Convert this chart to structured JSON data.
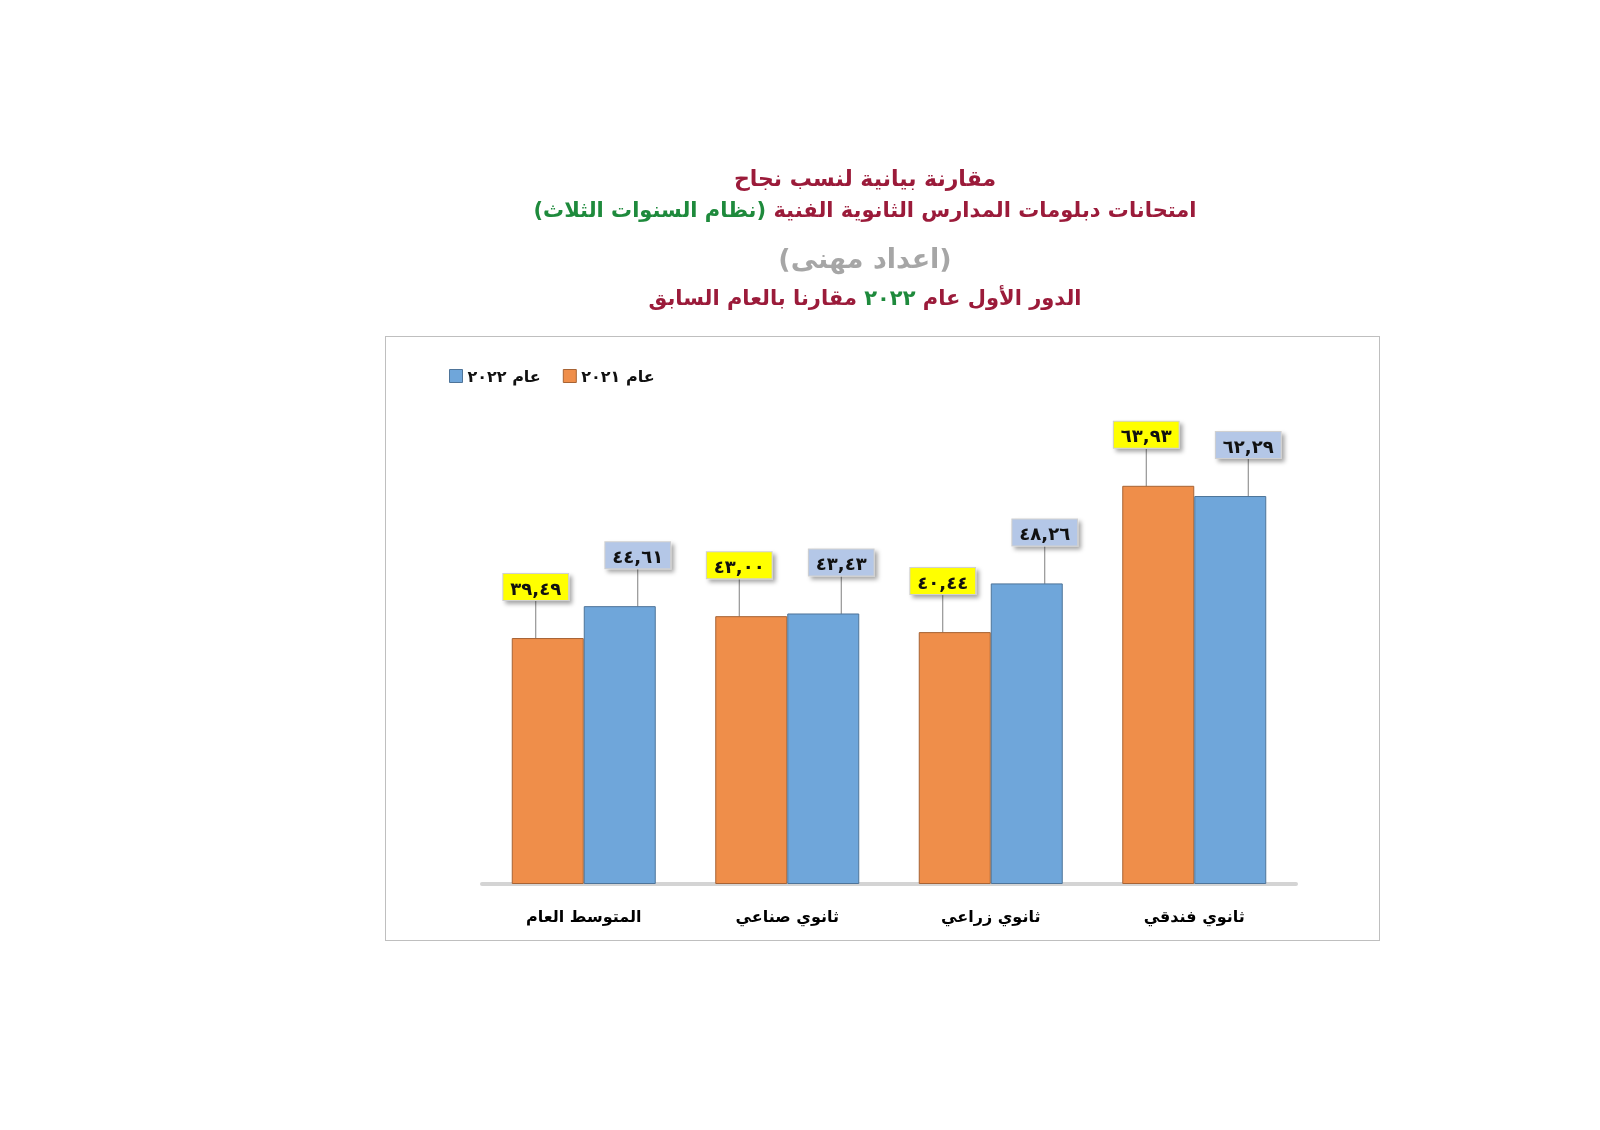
{
  "chart_data": {
    "type": "bar",
    "title": "مقارنة بيانية لنسب نجاح",
    "subtitle": "امتحانات دبلومات المدارس الثانوية الفنية (نظام السنوات الثلاث)",
    "annotations": [
      "(اعداد مهنى)",
      "الدور الأول عام ٢٠٢٢ مقارنا بالعام السابق"
    ],
    "categories": [
      "المتوسط العام",
      "ثانوي صناعي",
      "ثانوي زراعي",
      "ثانوي فندقي"
    ],
    "series": [
      {
        "name": "عام ٢٠٢١",
        "color": "#ef8e4a",
        "values": [
          39.49,
          43.0,
          40.44,
          63.93
        ],
        "value_labels": [
          "٣٩,٤٩",
          "٤٣,٠٠",
          "٤٠,٤٤",
          "٦٣,٩٣"
        ]
      },
      {
        "name": "عام ٢٠٢٢",
        "color": "#6fa6da",
        "values": [
          44.61,
          43.43,
          48.26,
          62.29
        ],
        "value_labels": [
          "٤٤,٦١",
          "٤٣,٤٣",
          "٤٨,٢٦",
          "٦٢,٢٩"
        ]
      }
    ],
    "legend": "top left"
  }
}
